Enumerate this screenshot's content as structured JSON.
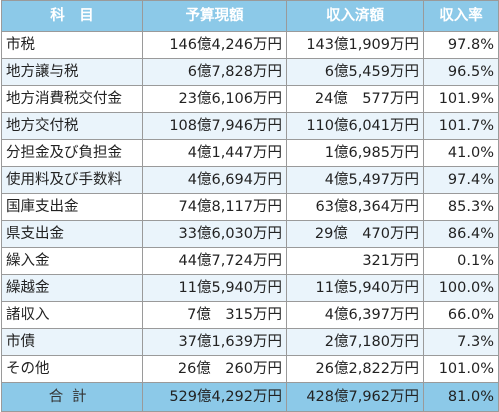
{
  "headers": [
    "科　目",
    "予算現額",
    "収入済額",
    "収入率"
  ],
  "rows": [
    {
      "name": "市税",
      "budget": "146億4,246万円",
      "received": "143億1,909万円",
      "rate": "97.8%"
    },
    {
      "name": "地方譲与税",
      "budget": "6億7,828万円",
      "received": "6億5,459万円",
      "rate": "96.5%"
    },
    {
      "name": "地方消費税交付金",
      "budget": "23億6,106万円",
      "received": "24億　577万円",
      "rate": "101.9%"
    },
    {
      "name": "地方交付税",
      "budget": "108億7,946万円",
      "received": "110億6,041万円",
      "rate": "101.7%"
    },
    {
      "name": "分担金及び負担金",
      "budget": "4億1,447万円",
      "received": "1億6,985万円",
      "rate": "41.0%"
    },
    {
      "name": "使用料及び手数料",
      "budget": "4億6,694万円",
      "received": "4億5,497万円",
      "rate": "97.4%"
    },
    {
      "name": "国庫支出金",
      "budget": "74億8,117万円",
      "received": "63億8,364万円",
      "rate": "85.3%"
    },
    {
      "name": "県支出金",
      "budget": "33億6,030万円",
      "received": "29億　470万円",
      "rate": "86.4%"
    },
    {
      "name": "繰入金",
      "budget": "44億7,724万円",
      "received": "321万円",
      "rate": "0.1%"
    },
    {
      "name": "繰越金",
      "budget": "11億5,940万円",
      "received": "11億5,940万円",
      "rate": "100.0%"
    },
    {
      "name": "諸収入",
      "budget": "7億　315万円",
      "received": "4億6,397万円",
      "rate": "66.0%"
    },
    {
      "name": "市債",
      "budget": "37億1,639万円",
      "received": "2億7,180万円",
      "rate": "7.3%"
    },
    {
      "name": "その他",
      "budget": "26億　260万円",
      "received": "26億2,822万円",
      "rate": "101.0%"
    }
  ],
  "total": {
    "name": "合計",
    "budget": "529億4,292万円",
    "received": "428億7,962万円",
    "rate": "81.0%"
  }
}
